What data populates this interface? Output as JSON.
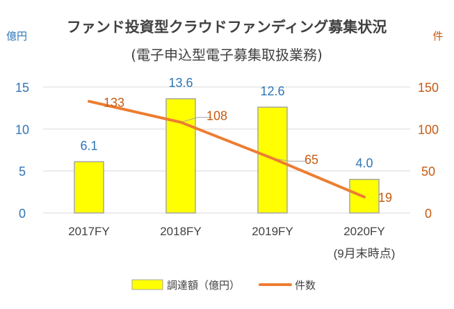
{
  "chart_data": {
    "type": "bar+line",
    "title": "ファンド投資型クラウドファンディング募集状況",
    "subtitle": "(電子申込型電子募集取扱業務)",
    "categories": [
      "2017FY",
      "2018FY",
      "2019FY",
      "2020FY"
    ],
    "category_sublabels": [
      "",
      "",
      "",
      "(9月末時点)"
    ],
    "left_axis": {
      "unit_label": "億円",
      "ylim": [
        0,
        15
      ],
      "ticks": [
        "0",
        "5",
        "10",
        "15"
      ],
      "color": "#2E75B6"
    },
    "right_axis": {
      "unit_label": "件",
      "ylim": [
        0,
        150
      ],
      "ticks": [
        "0",
        "50",
        "100",
        "150"
      ],
      "color": "#C55A11"
    },
    "series": [
      {
        "name": "調達額（億円）",
        "type": "bar",
        "axis": "left",
        "values": [
          6.1,
          13.6,
          12.6,
          4.0
        ],
        "labels": [
          "6.1",
          "13.6",
          "12.6",
          "4.0"
        ],
        "color": "#FFFF00",
        "edge_color": "#A5A5A5",
        "label_color": "#2E75B6"
      },
      {
        "name": "件数",
        "type": "line",
        "axis": "right",
        "values": [
          133,
          108,
          65,
          19
        ],
        "labels": [
          "133",
          "108",
          "65",
          "19"
        ],
        "color": "#ED7D31",
        "label_color": "#C55A11"
      }
    ],
    "grid": true,
    "legend": "bottom"
  }
}
